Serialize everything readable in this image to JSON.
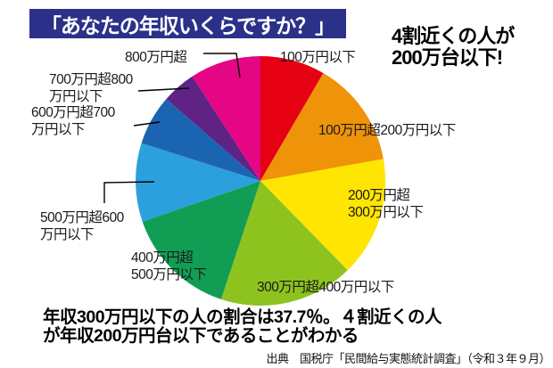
{
  "title": "「あなたの年収いくらですか？」",
  "title_bg_color": "#2b3189",
  "annotation": {
    "line1": "4割近くの人が",
    "line2": "200万台以下!"
  },
  "chart_data": {
    "type": "pie",
    "title": "あなたの年収いくらですか？",
    "unit": "percent",
    "direction": "clockwise",
    "start_angle_deg": 0,
    "legend_position": "around-pie",
    "slices": [
      {
        "label": "100万円以下",
        "value": 8.4,
        "color": "#e60013"
      },
      {
        "label": "100万円超200万円以下",
        "value": 13.8,
        "color": "#ef9309"
      },
      {
        "label": "200万円超300万円以下",
        "value": 15.5,
        "color": "#ffe502"
      },
      {
        "label": "300万円超400万円以下",
        "value": 17.4,
        "color": "#8ec31f"
      },
      {
        "label": "400万円超500万円以下",
        "value": 14.6,
        "color": "#119e54"
      },
      {
        "label": "500万円超600万円以下",
        "value": 10.2,
        "color": "#2ca0dd"
      },
      {
        "label": "600万円超700万円以下",
        "value": 6.5,
        "color": "#1b64b1"
      },
      {
        "label": "700万円超800万円以下",
        "value": 4.4,
        "color": "#5e2385"
      },
      {
        "label": "800万円超",
        "value": 9.2,
        "color": "#e40683"
      }
    ]
  },
  "pie_labels": {
    "over800": [
      "800万円超"
    ],
    "under100": [
      "100万円以下"
    ],
    "r700_800": [
      "700万円超800",
      "万円以下"
    ],
    "r600_700": [
      "600万円超700",
      "万円以下"
    ],
    "r500_600": [
      "500万円超600",
      "万円以下"
    ],
    "r400_500": [
      "400万円超",
      "500万円以下"
    ],
    "r300_400": [
      "300万円超400万円以下"
    ],
    "r200_300": [
      "200万円超",
      "300万円以下"
    ],
    "r100_200": [
      "100万円超200万円以下"
    ]
  },
  "caption": {
    "line1": "年収300万円以下の人の割合は37.7％。４割近くの人",
    "line2": "が年収200万円台以下であることがわかる"
  },
  "source": "出典　国税庁「民間給与実態統計調査」（令和３年９月）"
}
